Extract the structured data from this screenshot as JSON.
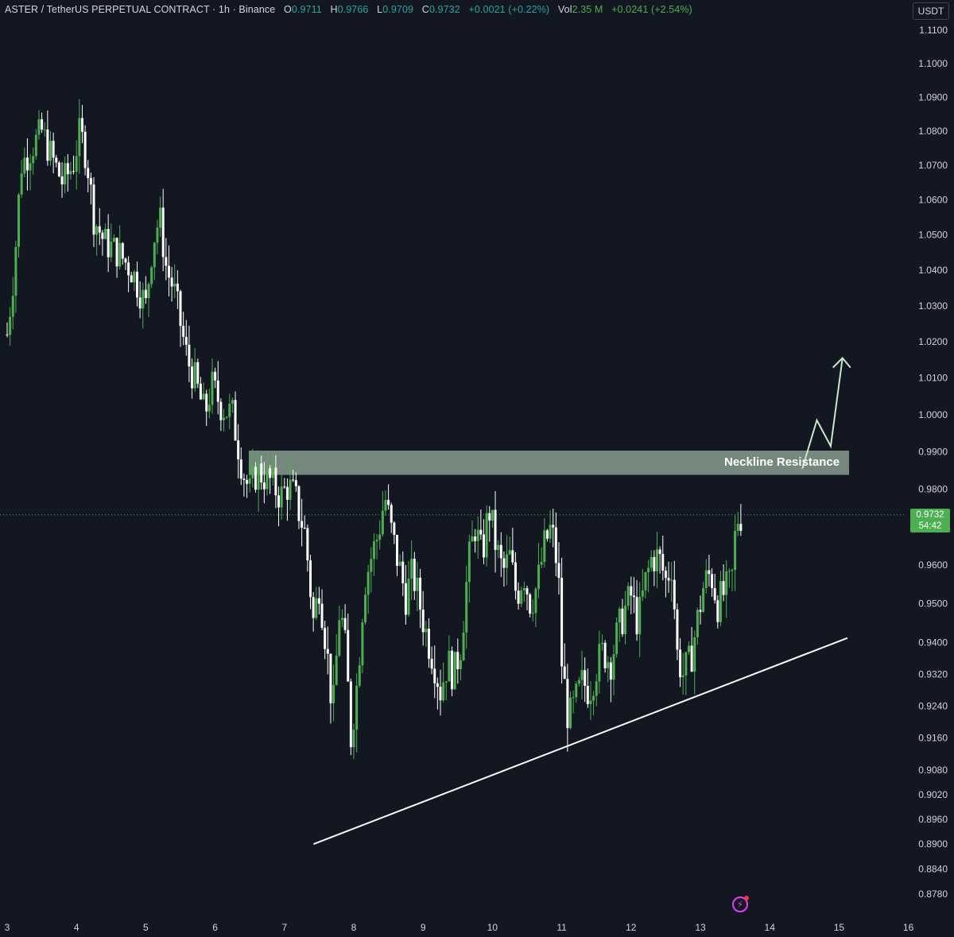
{
  "header": {
    "symbol": "ASTER / TetherUS PERPETUAL CONTRACT · 1h · Binance",
    "o_label": "O",
    "o_value": "0.9711",
    "h_label": "H",
    "h_value": "0.9766",
    "l_label": "L",
    "l_value": "0.9709",
    "c_label": "C",
    "c_value": "0.9732",
    "change": "+0.0021 (+0.22%)",
    "vol_label": "Vol",
    "vol_value": "2.35 M",
    "vol_change": "+0.0241 (+2.54%)"
  },
  "currency_button": "USDT",
  "price_label": {
    "price": "0.9732",
    "countdown": "54:42"
  },
  "annotation": {
    "text": "Neckline Resistance"
  },
  "colors": {
    "background": "#131722",
    "up": "#4caf50",
    "down": "#ffffff",
    "zone": "#c8e6c9",
    "text": "#d1d4dc"
  },
  "icons": {
    "alert": "lightning-icon"
  },
  "chart_data": {
    "type": "candlestick",
    "title": "ASTER / TetherUS PERPETUAL CONTRACT · 1h · Binance",
    "y_tick_labels": [
      "1.1100",
      "1.1000",
      "1.0900",
      "1.0800",
      "1.0700",
      "1.0600",
      "1.0500",
      "1.0400",
      "1.0300",
      "1.0200",
      "1.0100",
      "1.0000",
      "0.9900",
      "0.9800",
      "0.9600",
      "0.9500",
      "0.9400",
      "0.9320",
      "0.9240",
      "0.9160",
      "0.9080",
      "0.9020",
      "0.8960",
      "0.8900",
      "0.8840",
      "0.8780"
    ],
    "x_tick_labels": [
      "3",
      "4",
      "5",
      "6",
      "7",
      "8",
      "9",
      "10",
      "11",
      "12",
      "13",
      "14",
      "15",
      "16"
    ],
    "y_scale": "log",
    "x_range_days": [
      3,
      16
    ],
    "y_range": [
      0.875,
      1.115
    ],
    "last_price": 0.9732,
    "resistance_zone": {
      "label": "Neckline Resistance",
      "from": 0.9838,
      "to": 0.9903,
      "start_day": 6.6
    },
    "trendline": {
      "start": {
        "day": 7.42,
        "price": 0.89
      },
      "end": {
        "day": 15.12,
        "price": 0.9412
      }
    },
    "projection_arrow": [
      {
        "day": 14.47,
        "price": 0.9855
      },
      {
        "day": 14.68,
        "price": 0.9985
      },
      {
        "day": 14.88,
        "price": 0.9915
      },
      {
        "day": 15.05,
        "price": 1.0155
      }
    ],
    "price_path": [
      [
        3.0,
        1.022
      ],
      [
        3.1,
        1.04
      ],
      [
        3.2,
        1.07
      ],
      [
        3.35,
        1.075
      ],
      [
        3.5,
        1.08
      ],
      [
        3.65,
        1.072
      ],
      [
        3.8,
        1.065
      ],
      [
        3.95,
        1.07
      ],
      [
        4.05,
        1.08
      ],
      [
        4.15,
        1.072
      ],
      [
        4.25,
        1.055
      ],
      [
        4.4,
        1.048
      ],
      [
        4.6,
        1.045
      ],
      [
        4.8,
        1.04
      ],
      [
        5.0,
        1.03
      ],
      [
        5.1,
        1.048
      ],
      [
        5.2,
        1.055
      ],
      [
        5.3,
        1.04
      ],
      [
        5.4,
        1.035
      ],
      [
        5.5,
        1.025
      ],
      [
        5.6,
        1.015
      ],
      [
        5.7,
        1.01
      ],
      [
        5.85,
        1.0
      ],
      [
        5.95,
        1.008
      ],
      [
        6.1,
        1.002
      ],
      [
        6.25,
        1.0
      ],
      [
        6.4,
        0.985
      ],
      [
        6.5,
        0.979
      ],
      [
        6.6,
        0.985
      ],
      [
        6.8,
        0.982
      ],
      [
        6.95,
        0.978
      ],
      [
        7.05,
        0.981
      ],
      [
        7.15,
        0.978
      ],
      [
        7.3,
        0.968
      ],
      [
        7.42,
        0.945
      ],
      [
        7.5,
        0.955
      ],
      [
        7.6,
        0.94
      ],
      [
        7.7,
        0.922
      ],
      [
        7.8,
        0.95
      ],
      [
        7.9,
        0.935
      ],
      [
        7.95,
        0.915
      ],
      [
        8.05,
        0.93
      ],
      [
        8.15,
        0.955
      ],
      [
        8.25,
        0.962
      ],
      [
        8.35,
        0.968
      ],
      [
        8.45,
        0.978
      ],
      [
        8.55,
        0.968
      ],
      [
        8.65,
        0.96
      ],
      [
        8.75,
        0.952
      ],
      [
        8.85,
        0.958
      ],
      [
        8.95,
        0.95
      ],
      [
        9.05,
        0.942
      ],
      [
        9.15,
        0.936
      ],
      [
        9.25,
        0.928
      ],
      [
        9.35,
        0.935
      ],
      [
        9.45,
        0.932
      ],
      [
        9.55,
        0.94
      ],
      [
        9.65,
        0.96
      ],
      [
        9.75,
        0.97
      ],
      [
        9.85,
        0.962
      ],
      [
        9.95,
        0.975
      ],
      [
        10.05,
        0.965
      ],
      [
        10.15,
        0.958
      ],
      [
        10.25,
        0.962
      ],
      [
        10.35,
        0.952
      ],
      [
        10.45,
        0.958
      ],
      [
        10.55,
        0.95
      ],
      [
        10.65,
        0.955
      ],
      [
        10.75,
        0.965
      ],
      [
        10.85,
        0.97
      ],
      [
        10.95,
        0.958
      ],
      [
        11.0,
        0.935
      ],
      [
        11.1,
        0.92
      ],
      [
        11.2,
        0.925
      ],
      [
        11.3,
        0.93
      ],
      [
        11.4,
        0.928
      ],
      [
        11.5,
        0.934
      ],
      [
        11.6,
        0.938
      ],
      [
        11.7,
        0.935
      ],
      [
        11.8,
        0.942
      ],
      [
        11.9,
        0.948
      ],
      [
        12.0,
        0.952
      ],
      [
        12.1,
        0.945
      ],
      [
        12.2,
        0.955
      ],
      [
        12.3,
        0.962
      ],
      [
        12.4,
        0.962
      ],
      [
        12.5,
        0.956
      ],
      [
        12.6,
        0.961
      ],
      [
        12.65,
        0.938
      ],
      [
        12.75,
        0.932
      ],
      [
        12.85,
        0.935
      ],
      [
        12.95,
        0.945
      ],
      [
        13.05,
        0.955
      ],
      [
        13.15,
        0.958
      ],
      [
        13.25,
        0.95
      ],
      [
        13.35,
        0.953
      ],
      [
        13.45,
        0.955
      ],
      [
        13.52,
        0.972
      ],
      [
        13.6,
        0.9732
      ]
    ]
  }
}
